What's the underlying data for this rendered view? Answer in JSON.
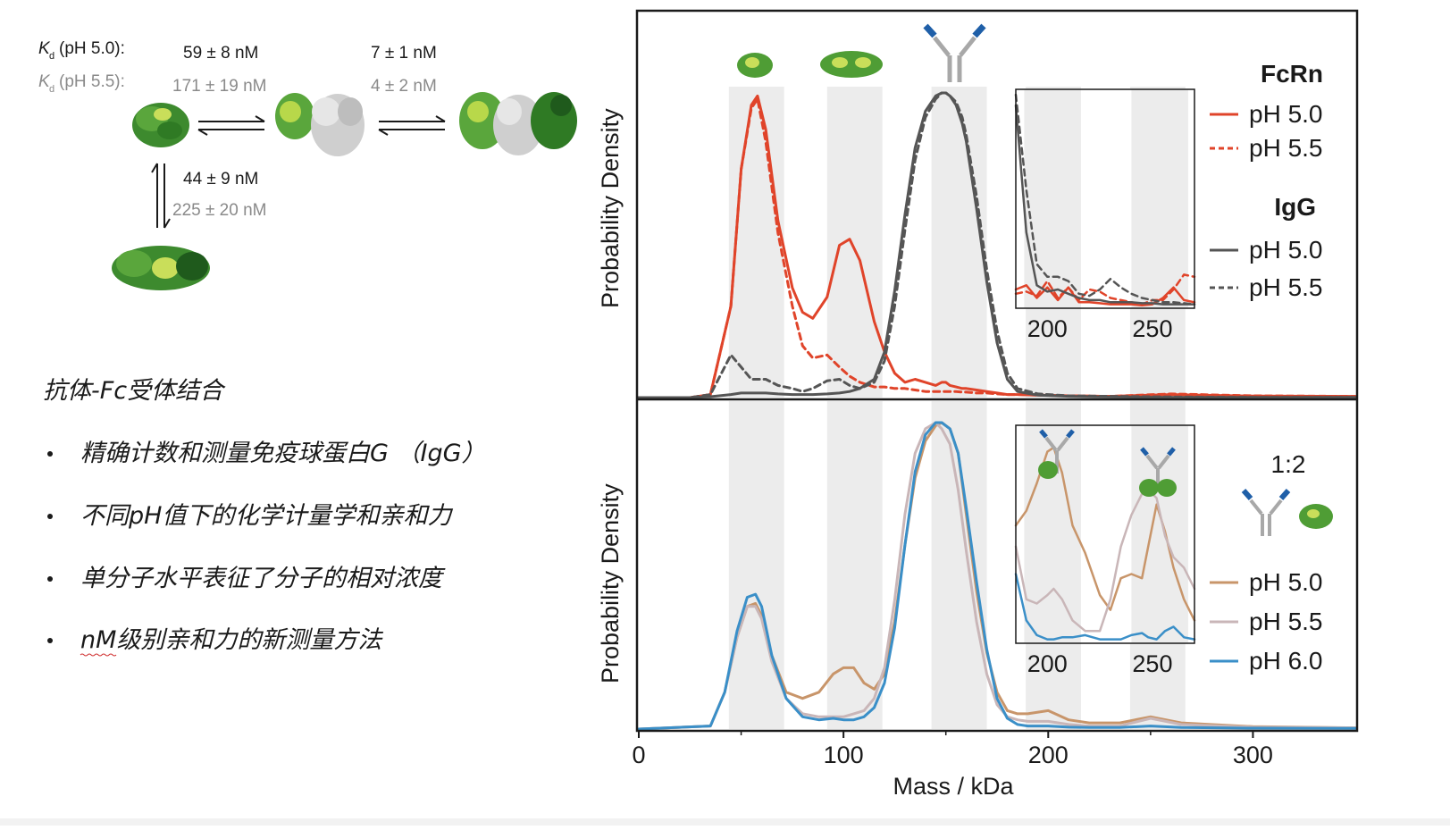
{
  "kd_scheme": {
    "label_ph50": "(pH 5.0):",
    "label_ph55": "(pH 5.5):",
    "k_symbol": "K",
    "k_subscript": "d",
    "step1_ph50": "59 ± 8 nM",
    "step1_ph55": "171 ± 19 nM",
    "step2_ph50": "7 ± 1 nM",
    "step2_ph55": "4 ± 2 nM",
    "step3_ph50": "44 ± 9 nM",
    "step3_ph55": "225 ± 20 nM"
  },
  "notes": {
    "title": "抗体-Fc受体结合",
    "bullets": [
      "精确计数和测量免疫球蛋白G （IgG）",
      "不同pH值下的化学计量学和亲和力",
      "单分子水平表征了分子的相对浓度",
      "nM级别亲和力的新测量方法"
    ]
  },
  "colors": {
    "fcrn": "#e0442a",
    "igg": "#555555",
    "ph50_bottom": "#c8956a",
    "ph55_bottom": "#c9b6b8",
    "ph60_bottom": "#3a8fc8",
    "band": "#ececec",
    "protein_green": "#5aa63c",
    "antibody_gray": "#a8a8a8",
    "antibody_blue": "#1f5fa8"
  },
  "chart_data": [
    {
      "type": "line",
      "panel": "top",
      "ylabel": "Probability Density",
      "xlim": [
        0,
        350
      ],
      "x": [
        0,
        25,
        35,
        45,
        50,
        55,
        58,
        62,
        68,
        75,
        80,
        85,
        92,
        98,
        103,
        108,
        115,
        120,
        125,
        130,
        135,
        140,
        145,
        148,
        150,
        152,
        155,
        158,
        160,
        165,
        170,
        175,
        180,
        185,
        195,
        210,
        230,
        260,
        300,
        350
      ],
      "ylim": [
        0,
        1
      ],
      "series": [
        {
          "name": "pH 5.0",
          "legend_group": "FcRn",
          "color": "#e0442a",
          "style": "solid",
          "values": [
            0,
            0,
            0.01,
            0.3,
            0.75,
            0.96,
            0.99,
            0.88,
            0.58,
            0.36,
            0.28,
            0.26,
            0.33,
            0.5,
            0.52,
            0.45,
            0.25,
            0.15,
            0.08,
            0.05,
            0.06,
            0.05,
            0.04,
            0.05,
            0.05,
            0.04,
            0.035,
            0.03,
            0.03,
            0.025,
            0.02,
            0.015,
            0.01,
            0.01,
            0.008,
            0.006,
            0.004,
            0.01,
            0.005,
            0.004
          ]
        },
        {
          "name": "pH 5.5",
          "legend_group": "FcRn",
          "color": "#e0442a",
          "style": "dashed",
          "values": [
            0,
            0,
            0.01,
            0.3,
            0.75,
            0.95,
            0.98,
            0.84,
            0.54,
            0.3,
            0.17,
            0.13,
            0.14,
            0.1,
            0.07,
            0.05,
            0.035,
            0.035,
            0.03,
            0.03,
            0.025,
            0.02,
            0.02,
            0.02,
            0.02,
            0.02,
            0.02,
            0.018,
            0.018,
            0.015,
            0.015,
            0.012,
            0.01,
            0.01,
            0.008,
            0.006,
            0.004,
            0.012,
            0.006,
            0.004
          ]
        },
        {
          "name": "pH 5.0",
          "legend_group": "IgG",
          "color": "#555555",
          "style": "solid",
          "values": [
            0,
            0,
            0.003,
            0.01,
            0.015,
            0.015,
            0.015,
            0.015,
            0.012,
            0.01,
            0.01,
            0.01,
            0.012,
            0.015,
            0.02,
            0.03,
            0.06,
            0.15,
            0.35,
            0.6,
            0.82,
            0.94,
            0.99,
            1.0,
            1.0,
            0.99,
            0.96,
            0.9,
            0.84,
            0.62,
            0.38,
            0.18,
            0.06,
            0.02,
            0.008,
            0.004,
            0.002,
            0.001,
            0.001,
            0.001
          ]
        },
        {
          "name": "pH 5.5",
          "legend_group": "IgG",
          "color": "#555555",
          "style": "dashed",
          "values": [
            0,
            0,
            0.01,
            0.14,
            0.1,
            0.06,
            0.06,
            0.06,
            0.04,
            0.03,
            0.02,
            0.03,
            0.055,
            0.06,
            0.04,
            0.03,
            0.05,
            0.12,
            0.3,
            0.55,
            0.78,
            0.92,
            0.98,
            1.0,
            1.0,
            0.99,
            0.97,
            0.92,
            0.86,
            0.66,
            0.42,
            0.22,
            0.08,
            0.03,
            0.012,
            0.006,
            0.004,
            0.002,
            0.001,
            0.001
          ]
        }
      ]
    },
    {
      "type": "line",
      "panel": "top-inset",
      "x_ticks": [
        200,
        250
      ],
      "xlim": [
        185,
        270
      ],
      "x": [
        185,
        190,
        195,
        200,
        205,
        210,
        215,
        220,
        225,
        230,
        235,
        240,
        245,
        250,
        255,
        260,
        265,
        270
      ],
      "ylim": [
        0,
        1
      ],
      "series": [
        {
          "name": "FcRn pH 5.0",
          "color": "#e0442a",
          "style": "solid",
          "values": [
            0.08,
            0.1,
            0.04,
            0.09,
            0.03,
            0.09,
            0.02,
            0.02,
            0.015,
            0.01,
            0.01,
            0.01,
            0.005,
            0.01,
            0.04,
            0.09,
            0.03,
            0.02
          ]
        },
        {
          "name": "FcRn pH 5.5",
          "color": "#e0442a",
          "style": "dashed",
          "values": [
            0.06,
            0.07,
            0.05,
            0.12,
            0.04,
            0.09,
            0.03,
            0.08,
            0.07,
            0.04,
            0.03,
            0.02,
            0.01,
            0.03,
            0.03,
            0.08,
            0.15,
            0.14
          ]
        },
        {
          "name": "IgG pH 5.0",
          "color": "#555555",
          "style": "solid",
          "values": [
            0.95,
            0.35,
            0.1,
            0.07,
            0.08,
            0.06,
            0.04,
            0.03,
            0.03,
            0.02,
            0.02,
            0.02,
            0.015,
            0.015,
            0.01,
            0.01,
            0.01,
            0.01
          ]
        },
        {
          "name": "IgG pH 5.5",
          "color": "#555555",
          "style": "dashed",
          "values": [
            1.0,
            0.55,
            0.2,
            0.14,
            0.14,
            0.12,
            0.06,
            0.05,
            0.08,
            0.13,
            0.09,
            0.06,
            0.04,
            0.03,
            0.02,
            0.02,
            0.015,
            0.01
          ]
        }
      ]
    },
    {
      "type": "line",
      "panel": "bottom",
      "ylabel": "Probability Density",
      "xlabel": "Mass / kDa",
      "xlim": [
        0,
        350
      ],
      "x_ticks": [
        0,
        100,
        200,
        300
      ],
      "legend_title": "1:2",
      "x": [
        0,
        35,
        42,
        48,
        53,
        57,
        60,
        65,
        72,
        80,
        88,
        95,
        100,
        105,
        110,
        115,
        120,
        125,
        130,
        135,
        140,
        145,
        148,
        152,
        156,
        160,
        165,
        170,
        175,
        180,
        185,
        190,
        200,
        210,
        220,
        235,
        250,
        265,
        300,
        350
      ],
      "ylim": [
        0,
        1
      ],
      "series": [
        {
          "name": "pH 5.0",
          "color": "#c8956a",
          "style": "solid",
          "values": [
            0,
            0.01,
            0.12,
            0.3,
            0.4,
            0.41,
            0.37,
            0.24,
            0.12,
            0.1,
            0.12,
            0.18,
            0.2,
            0.2,
            0.15,
            0.13,
            0.18,
            0.35,
            0.6,
            0.82,
            0.94,
            0.99,
            1.0,
            0.98,
            0.9,
            0.7,
            0.45,
            0.25,
            0.12,
            0.06,
            0.05,
            0.05,
            0.06,
            0.03,
            0.02,
            0.02,
            0.04,
            0.02,
            0.008,
            0.004
          ]
        },
        {
          "name": "pH 5.5",
          "color": "#c9b6b8",
          "style": "solid",
          "values": [
            0,
            0.01,
            0.12,
            0.3,
            0.4,
            0.4,
            0.36,
            0.22,
            0.1,
            0.05,
            0.04,
            0.04,
            0.04,
            0.05,
            0.06,
            0.1,
            0.2,
            0.42,
            0.7,
            0.9,
            0.98,
            1.0,
            0.98,
            0.93,
            0.78,
            0.58,
            0.35,
            0.18,
            0.08,
            0.04,
            0.03,
            0.025,
            0.025,
            0.015,
            0.01,
            0.01,
            0.035,
            0.015,
            0.006,
            0.004
          ]
        },
        {
          "name": "pH 6.0",
          "color": "#3a8fc8",
          "style": "solid",
          "values": [
            0,
            0.01,
            0.12,
            0.32,
            0.43,
            0.44,
            0.4,
            0.24,
            0.1,
            0.04,
            0.03,
            0.035,
            0.03,
            0.03,
            0.04,
            0.07,
            0.15,
            0.33,
            0.6,
            0.84,
            0.96,
            1.0,
            1.0,
            0.98,
            0.9,
            0.72,
            0.48,
            0.26,
            0.1,
            0.035,
            0.015,
            0.01,
            0.01,
            0.006,
            0.005,
            0.005,
            0.01,
            0.005,
            0.003,
            0.002
          ]
        }
      ]
    },
    {
      "type": "line",
      "panel": "bottom-inset",
      "x_ticks": [
        200,
        250
      ],
      "xlim": [
        185,
        270
      ],
      "x": [
        185,
        190,
        195,
        200,
        203,
        207,
        212,
        218,
        225,
        230,
        235,
        240,
        245,
        248,
        252,
        256,
        260,
        265,
        270
      ],
      "ylim": [
        0,
        1
      ],
      "series": [
        {
          "name": "pH 5.0",
          "color": "#c8956a",
          "style": "solid",
          "values": [
            0.55,
            0.62,
            0.75,
            0.9,
            0.92,
            0.8,
            0.55,
            0.42,
            0.22,
            0.15,
            0.3,
            0.32,
            0.3,
            0.45,
            0.65,
            0.52,
            0.35,
            0.2,
            0.1
          ]
        },
        {
          "name": "pH 5.5",
          "color": "#c9b6b8",
          "style": "solid",
          "values": [
            0.45,
            0.2,
            0.18,
            0.22,
            0.25,
            0.2,
            0.1,
            0.05,
            0.05,
            0.2,
            0.45,
            0.6,
            0.7,
            0.72,
            0.68,
            0.5,
            0.4,
            0.35,
            0.25
          ]
        },
        {
          "name": "pH 6.0",
          "color": "#3a8fc8",
          "style": "solid",
          "values": [
            0.32,
            0.1,
            0.03,
            0.01,
            0.01,
            0.02,
            0.02,
            0.03,
            0.01,
            0.01,
            0.01,
            0.03,
            0.04,
            0.02,
            0.01,
            0.05,
            0.07,
            0.02,
            0.01
          ]
        }
      ]
    }
  ]
}
